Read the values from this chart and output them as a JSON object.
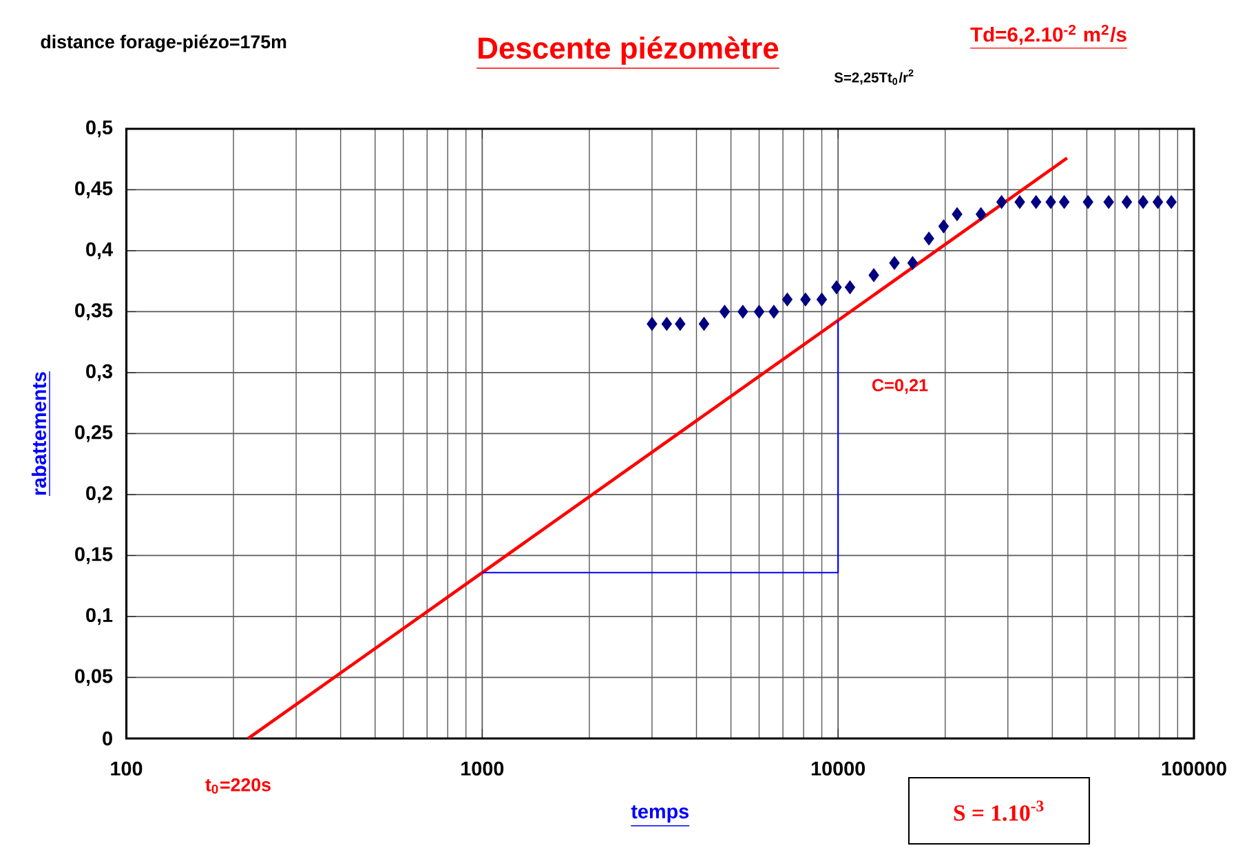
{
  "chart_data": {
    "type": "scatter",
    "title": "Descente piézomètre",
    "xlabel": "temps",
    "ylabel": "rabattements",
    "log": "x",
    "grid": true,
    "marker": "diamond",
    "xlim": [
      100,
      100000
    ],
    "xticks": [
      100,
      1000,
      10000,
      100000
    ],
    "ylim": [
      0,
      0.5
    ],
    "yticks": [
      0,
      {
        "value": 0.05,
        "label": "0,05"
      },
      {
        "value": 0.1,
        "label": "0,1"
      },
      {
        "value": 0.15,
        "label": "0,15"
      },
      {
        "value": 0.2,
        "label": "0,2"
      },
      {
        "value": 0.25,
        "label": "0,25"
      },
      {
        "value": 0.3,
        "label": "0,3"
      },
      {
        "value": 0.35,
        "label": "0,35"
      },
      {
        "value": 0.4,
        "label": "0,4"
      },
      {
        "value": 0.45,
        "label": "0,45"
      },
      {
        "value": 0.5,
        "label": "0,5"
      }
    ],
    "series": [
      {
        "color": "#000080",
        "x": [
          3000,
          3300,
          3600,
          4200,
          4800,
          5400,
          6000,
          6600,
          7200,
          8100,
          9000,
          9900,
          10800,
          12600,
          14400,
          16200,
          18000,
          19800,
          21600,
          25200,
          28800,
          32400,
          36000,
          39600,
          43200,
          50400,
          57600,
          64800,
          72000,
          79200,
          86400
        ],
        "values": [
          0.34,
          0.34,
          0.34,
          0.34,
          0.35,
          0.35,
          0.35,
          0.35,
          0.36,
          0.36,
          0.36,
          0.37,
          0.37,
          0.38,
          0.39,
          0.39,
          0.41,
          0.42,
          0.43,
          0.43,
          0.44,
          0.44,
          0.44,
          0.44,
          0.44,
          0.44,
          0.44,
          0.44,
          0.44,
          0.44,
          0.44
        ]
      },
      {
        "type": "line",
        "color": "#ff0000",
        "marker": "none",
        "x": [
          220,
          44000
        ],
        "values": [
          0,
          0.476
        ]
      },
      {
        "type": "line",
        "color": "#0000ff",
        "marker": "none",
        "x": [
          1000,
          10000,
          10000
        ],
        "values": [
          0.136,
          0.136,
          0.343
        ]
      }
    ],
    "annotations": [
      "distance forage-piézo=175m",
      "Td=6,2.10$^{-2}$ m$^{2}$/s",
      "S=2,25Tt$_{0}$/r$^{2}$",
      "C=0,21",
      "t$_{0}$=220s",
      "S = 1.10$^{-3}$"
    ]
  }
}
